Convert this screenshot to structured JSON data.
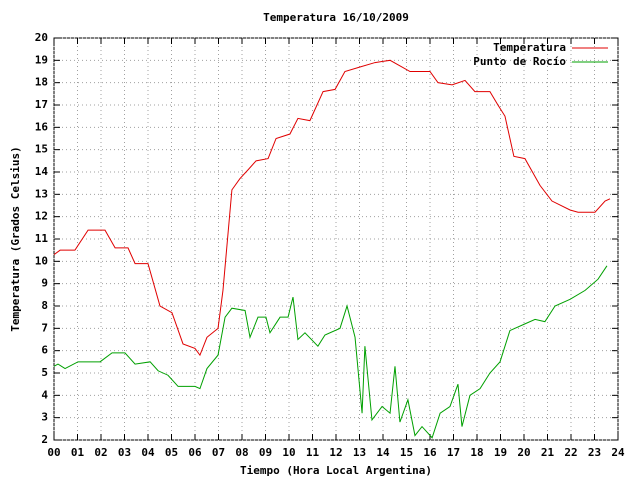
{
  "chart_data": {
    "type": "line",
    "title": "Temperatura 16/10/2009",
    "xlabel": "Tiempo (Hora Local Argentina)",
    "ylabel": "Temperatura (Grados Celsius)",
    "xlim": [
      0,
      24
    ],
    "ylim": [
      2,
      20
    ],
    "xticks": [
      {
        "value": 0,
        "label": "00"
      },
      {
        "value": 1,
        "label": "01"
      },
      {
        "value": 2,
        "label": "02"
      },
      {
        "value": 3,
        "label": "03"
      },
      {
        "value": 4,
        "label": "04"
      },
      {
        "value": 5,
        "label": "05"
      },
      {
        "value": 6,
        "label": "06"
      },
      {
        "value": 7,
        "label": "07"
      },
      {
        "value": 8,
        "label": "08"
      },
      {
        "value": 9,
        "label": "09"
      },
      10,
      11,
      12,
      13,
      14,
      15,
      16,
      17,
      18,
      19,
      20,
      21,
      22,
      23,
      24
    ],
    "yticks": [
      2,
      3,
      4,
      5,
      6,
      7,
      8,
      9,
      10,
      11,
      12,
      13,
      14,
      15,
      16,
      17,
      18,
      19,
      20
    ],
    "grid": true,
    "legend": "top-right",
    "series": [
      {
        "name": "Temperatura",
        "color": "#e00000",
        "x": [
          0,
          0.26,
          0.89,
          1.45,
          2.17,
          2.6,
          3.15,
          3.45,
          4.0,
          4.51,
          5.02,
          5.49,
          6.0,
          6.21,
          6.51,
          6.98,
          7.19,
          7.57,
          7.91,
          8.26,
          8.6,
          9.11,
          9.45,
          10.04,
          10.38,
          10.89,
          11.45,
          11.96,
          12.38,
          13.02,
          13.66,
          14.3,
          15.15,
          16.0,
          16.34,
          16.94,
          17.49,
          17.91,
          18.55,
          18.89,
          19.19,
          19.57,
          20.04,
          20.68,
          21.19,
          21.96,
          22.3,
          23.02,
          23.45,
          23.66
        ],
        "values": [
          10.3,
          10.5,
          10.5,
          11.4,
          11.4,
          10.6,
          10.6,
          9.9,
          9.9,
          8.0,
          7.7,
          6.3,
          6.1,
          5.8,
          6.6,
          7.0,
          8.7,
          13.2,
          13.7,
          14.1,
          14.5,
          14.6,
          15.5,
          15.7,
          16.4,
          16.3,
          17.6,
          17.7,
          18.5,
          18.7,
          18.9,
          19.0,
          18.5,
          18.5,
          18.0,
          17.9,
          18.1,
          17.6,
          17.6,
          17.0,
          16.5,
          14.7,
          14.6,
          13.4,
          12.7,
          12.3,
          12.2,
          12.2,
          12.7,
          12.8
        ]
      },
      {
        "name": "Punto de Rocío",
        "color": "#00a000",
        "x": [
          0,
          0.17,
          0.47,
          1.02,
          1.96,
          2.47,
          3.02,
          3.45,
          4.09,
          4.43,
          4.85,
          5.28,
          6.0,
          6.21,
          6.51,
          6.98,
          7.28,
          7.57,
          8.13,
          8.34,
          8.68,
          9.02,
          9.19,
          9.62,
          9.96,
          10.17,
          10.38,
          10.68,
          11.23,
          11.53,
          12.17,
          12.47,
          12.81,
          13.11,
          13.23,
          13.53,
          13.96,
          14.3,
          14.51,
          14.72,
          15.06,
          15.36,
          15.66,
          16.09,
          16.43,
          16.85,
          17.19,
          17.36,
          17.7,
          18.13,
          18.55,
          18.98,
          19.4,
          20.04,
          20.47,
          20.89,
          21.32,
          21.96,
          22.6,
          23.15,
          23.53
        ],
        "values": [
          5.3,
          5.4,
          5.2,
          5.5,
          5.5,
          5.9,
          5.9,
          5.4,
          5.5,
          5.1,
          4.9,
          4.4,
          4.4,
          4.3,
          5.2,
          5.8,
          7.5,
          7.9,
          7.8,
          6.6,
          7.5,
          7.5,
          6.8,
          7.5,
          7.5,
          8.4,
          6.5,
          6.8,
          6.2,
          6.7,
          7.0,
          8.0,
          6.6,
          3.2,
          6.2,
          2.9,
          3.5,
          3.2,
          5.3,
          2.8,
          3.8,
          2.2,
          2.6,
          2.1,
          3.2,
          3.5,
          4.5,
          2.6,
          4.0,
          4.3,
          5.0,
          5.5,
          6.9,
          7.2,
          7.4,
          7.3,
          8.0,
          8.3,
          8.7,
          9.2,
          9.8
        ]
      }
    ]
  }
}
